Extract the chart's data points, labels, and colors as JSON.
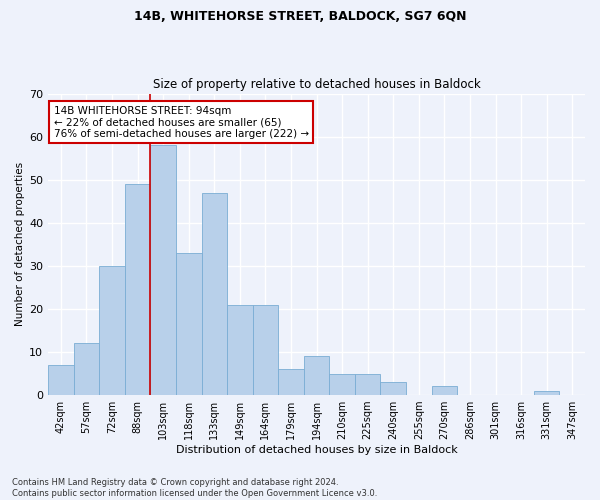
{
  "title1": "14B, WHITEHORSE STREET, BALDOCK, SG7 6QN",
  "title2": "Size of property relative to detached houses in Baldock",
  "xlabel": "Distribution of detached houses by size in Baldock",
  "ylabel": "Number of detached properties",
  "bin_labels": [
    "42sqm",
    "57sqm",
    "72sqm",
    "88sqm",
    "103sqm",
    "118sqm",
    "133sqm",
    "149sqm",
    "164sqm",
    "179sqm",
    "194sqm",
    "210sqm",
    "225sqm",
    "240sqm",
    "255sqm",
    "270sqm",
    "286sqm",
    "301sqm",
    "316sqm",
    "331sqm",
    "347sqm"
  ],
  "bar_heights": [
    7,
    12,
    30,
    49,
    58,
    33,
    47,
    21,
    21,
    6,
    9,
    5,
    5,
    3,
    0,
    2,
    0,
    0,
    0,
    1,
    0
  ],
  "bar_color": "#b8d0ea",
  "bar_edge_color": "#7aadd4",
  "vline_index": 3.5,
  "annotation_text_line1": "14B WHITEHORSE STREET: 94sqm",
  "annotation_text_line2": "← 22% of detached houses are smaller (65)",
  "annotation_text_line3": "76% of semi-detached houses are larger (222) →",
  "annotation_box_color": "#ffffff",
  "annotation_box_edge": "#cc0000",
  "vline_color": "#cc0000",
  "ylim": [
    0,
    70
  ],
  "yticks": [
    0,
    10,
    20,
    30,
    40,
    50,
    60,
    70
  ],
  "footnote_line1": "Contains HM Land Registry data © Crown copyright and database right 2024.",
  "footnote_line2": "Contains public sector information licensed under the Open Government Licence v3.0.",
  "bg_color": "#eef2fb",
  "grid_color": "#ffffff",
  "title1_fontsize": 9,
  "title2_fontsize": 8.5,
  "xlabel_fontsize": 8,
  "ylabel_fontsize": 7.5,
  "tick_fontsize": 7,
  "annotation_fontsize": 7.5,
  "footnote_fontsize": 6
}
